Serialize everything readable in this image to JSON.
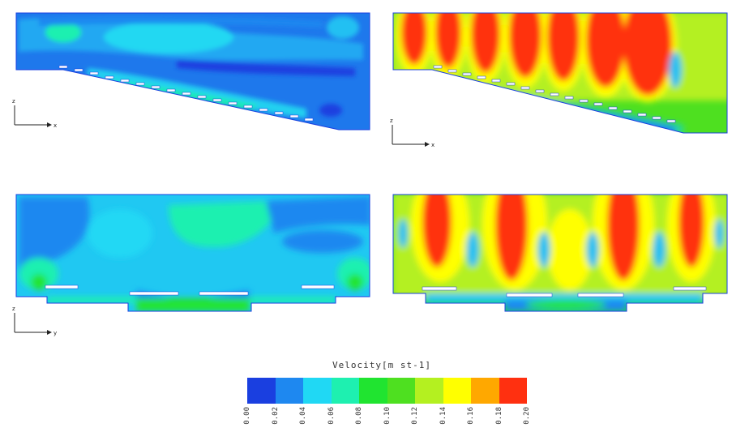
{
  "panels": [
    {
      "id": "top-left",
      "variable": "velocity",
      "plane": "x-z",
      "regime": "low"
    },
    {
      "id": "top-right",
      "variable": "velocity",
      "plane": "x-z",
      "regime": "high"
    },
    {
      "id": "bottom-left",
      "variable": "velocity",
      "plane": "y-z",
      "regime": "low"
    },
    {
      "id": "bottom-right",
      "variable": "velocity",
      "plane": "y-z",
      "regime": "high"
    }
  ],
  "axes": {
    "top": {
      "vertical": "z",
      "horizontal": "x"
    },
    "bottom": {
      "vertical": "z",
      "horizontal": "y"
    }
  },
  "legend": {
    "title": "Velocity[m st-1]",
    "colors": [
      "#1a3fe0",
      "#1e88f0",
      "#20d8f4",
      "#1ef0b0",
      "#20e430",
      "#4ee020",
      "#b4f020",
      "#ffff00",
      "#ffa800",
      "#ff3010"
    ],
    "ticks": [
      "0.00",
      "0.02",
      "0.04",
      "0.06",
      "0.08",
      "0.10",
      "0.12",
      "0.14",
      "0.16",
      "0.18",
      "0.20"
    ]
  }
}
